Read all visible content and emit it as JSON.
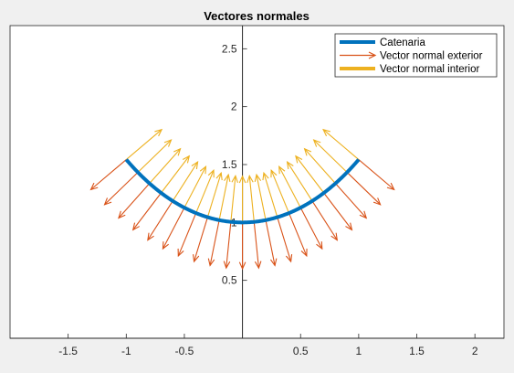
{
  "window": {
    "background": "#f0f0f0"
  },
  "chart_data": {
    "type": "line",
    "title": "Vectores normales",
    "xlabel": "",
    "ylabel": "",
    "xlim": [
      -2,
      2.25
    ],
    "ylim": [
      0,
      2.7
    ],
    "axis_location": "origin",
    "x_ticks": [
      -1.5,
      -1,
      -0.5,
      0.5,
      1,
      1.5,
      2
    ],
    "x_tick_labels": [
      "-1.5",
      "-1",
      "-0.5",
      "0.5",
      "1",
      "1.5",
      "2"
    ],
    "y_ticks": [
      0.5,
      1,
      1.5,
      2,
      2.5
    ],
    "y_tick_labels": [
      "0.5",
      "1",
      "1.5",
      "2",
      "2.5"
    ],
    "grid": false,
    "legend_position": "top-right",
    "curve": {
      "name": "Catenaria",
      "equation": "y = cosh(x)",
      "x_range": [
        -1,
        1
      ],
      "color": "#0072bd"
    },
    "normal_samples_x": [
      -1.0,
      -0.9,
      -0.8,
      -0.7,
      -0.6,
      -0.5,
      -0.4,
      -0.3,
      -0.2,
      -0.1,
      0.0,
      0.1,
      0.2,
      0.3,
      0.4,
      0.5,
      0.6,
      0.7,
      0.8,
      0.9,
      1.0
    ],
    "normal_length": 0.4,
    "series": [
      {
        "name": "Catenaria",
        "color": "#0072bd"
      },
      {
        "name": "Vector normal exterior",
        "color": "#d95319"
      },
      {
        "name": "Vector normal interior",
        "color": "#edb120"
      }
    ]
  }
}
